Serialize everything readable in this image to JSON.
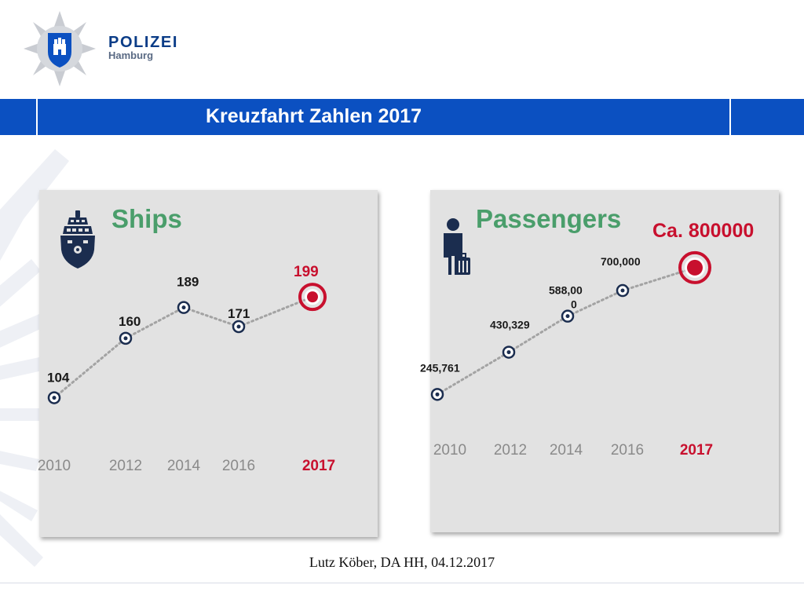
{
  "brand": {
    "title": "POLIZEI",
    "subtitle": "Hamburg"
  },
  "banner": {
    "title": "Kreuzfahrt Zahlen 2017"
  },
  "footer": {
    "text": "Lutz Köber, DA HH, 04.12.2017"
  },
  "colors": {
    "blue": "#0b50c1",
    "green": "#4a9e6b",
    "red": "#c8102e",
    "navy": "#1b2d4f",
    "dots": "#a3a3a3",
    "year": "#8a8a8a"
  },
  "icons": {
    "ships": "cruise-ship-icon",
    "passengers": "traveller-luggage-icon",
    "highlight": "target-icon"
  },
  "chart_data": [
    {
      "type": "line",
      "title": "Ships",
      "categories": [
        "2010",
        "2012",
        "2014",
        "2016",
        "2017"
      ],
      "values": [
        104,
        160,
        189,
        171,
        199
      ],
      "labels": [
        "104",
        "160",
        "189",
        "171",
        "199"
      ],
      "highlight_index": 4,
      "ylim": [
        100,
        205
      ],
      "grid": false
    },
    {
      "type": "line",
      "title": "Passengers",
      "annotation": "Ca. 800000",
      "categories": [
        "2010",
        "2012",
        "2014",
        "2016",
        "2017"
      ],
      "values": [
        245761,
        430329,
        588000,
        700000,
        800000
      ],
      "labels": [
        "245,761",
        "430,329",
        "588,00\n0",
        "700,000",
        ""
      ],
      "highlight_index": 4,
      "ylim": [
        240000,
        810000
      ],
      "grid": false
    }
  ]
}
